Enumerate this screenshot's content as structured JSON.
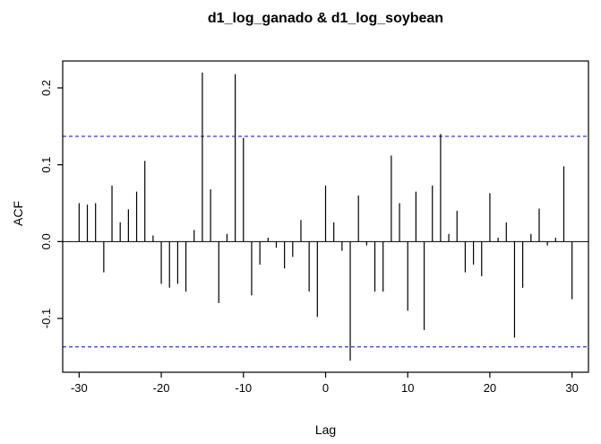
{
  "figure": {
    "background": "#ffffff"
  },
  "chart_data": {
    "type": "bar",
    "subtype": "ccf-stem-plot",
    "title": "d1_log_ganado & d1_log_soybean",
    "xlabel": "Lag",
    "ylabel": "ACF",
    "x": [
      -30,
      -29,
      -28,
      -27,
      -26,
      -25,
      -24,
      -23,
      -22,
      -21,
      -20,
      -19,
      -18,
      -17,
      -16,
      -15,
      -14,
      -13,
      -12,
      -11,
      -10,
      -9,
      -8,
      -7,
      -6,
      -5,
      -4,
      -3,
      -2,
      -1,
      0,
      1,
      2,
      3,
      4,
      5,
      6,
      7,
      8,
      9,
      10,
      11,
      12,
      13,
      14,
      15,
      16,
      17,
      18,
      19,
      20,
      21,
      22,
      23,
      24,
      25,
      26,
      27,
      28,
      29,
      30
    ],
    "values": [
      0.05,
      0.048,
      0.05,
      -0.04,
      0.073,
      0.025,
      0.042,
      0.065,
      0.105,
      0.008,
      -0.055,
      -0.06,
      -0.055,
      -0.065,
      0.015,
      0.22,
      0.068,
      -0.08,
      0.01,
      0.218,
      0.135,
      -0.07,
      -0.03,
      0.005,
      -0.008,
      -0.035,
      -0.02,
      0.028,
      -0.065,
      -0.098,
      0.073,
      0.025,
      -0.012,
      -0.155,
      0.06,
      -0.005,
      -0.065,
      -0.065,
      0.112,
      0.05,
      -0.09,
      0.065,
      -0.115,
      0.073,
      0.14,
      0.01,
      0.04,
      -0.04,
      -0.03,
      -0.045,
      0.063,
      0.005,
      0.025,
      -0.125,
      -0.06,
      0.01,
      0.043,
      -0.005,
      0.005,
      0.098,
      -0.075
    ],
    "xlim": [
      -32,
      32
    ],
    "ylim": [
      -0.17,
      0.235
    ],
    "x_ticks": [
      -30,
      -20,
      -10,
      0,
      10,
      20,
      30
    ],
    "x_tick_labels": [
      "-30",
      "-20",
      "-10",
      "0",
      "10",
      "20",
      "30"
    ],
    "y_ticks": [
      -0.1,
      0.0,
      0.1,
      0.2
    ],
    "y_tick_labels": [
      "-0.1",
      "0.0",
      "0.1",
      "0.2"
    ],
    "confidence_bounds": {
      "upper": 0.137,
      "lower": -0.137,
      "color": "#0000ff",
      "dashed": true
    },
    "zero_line_y": 0.0,
    "spike_color": "#000000",
    "box_color": "#000000",
    "grid": false,
    "legend": null
  }
}
